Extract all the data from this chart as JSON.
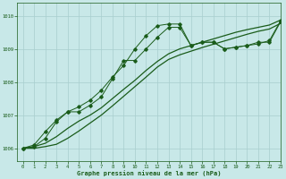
{
  "title": "Graphe pression niveau de la mer (hPa)",
  "background_color": "#c8e8e8",
  "grid_color": "#a8cece",
  "line_color": "#1a5c1a",
  "xlim": [
    -0.5,
    23
  ],
  "ylim": [
    1005.6,
    1010.4
  ],
  "yticks": [
    1006,
    1007,
    1008,
    1009,
    1010
  ],
  "xticks": [
    0,
    1,
    2,
    3,
    4,
    5,
    6,
    7,
    8,
    9,
    10,
    11,
    12,
    13,
    14,
    15,
    16,
    17,
    18,
    19,
    20,
    21,
    22,
    23
  ],
  "series1_x": [
    0,
    1,
    2,
    3,
    4,
    5,
    6,
    7,
    8,
    9,
    10,
    11,
    12,
    13,
    14,
    15,
    16,
    17,
    18,
    19,
    20,
    21,
    22,
    23
  ],
  "series1_y": [
    1006.0,
    1006.05,
    1006.3,
    1006.8,
    1007.1,
    1007.1,
    1007.3,
    1007.55,
    1008.1,
    1008.65,
    1008.65,
    1009.0,
    1009.35,
    1009.65,
    1009.65,
    1009.1,
    1009.2,
    1009.2,
    1009.0,
    1009.05,
    1009.1,
    1009.2,
    1009.2,
    1009.82
  ],
  "series2_x": [
    0,
    1,
    2,
    3,
    4,
    5,
    6,
    7,
    8,
    9,
    10,
    11,
    12,
    13,
    14,
    15,
    16,
    17,
    18,
    19,
    20,
    21,
    22,
    23
  ],
  "series2_y": [
    1006.0,
    1006.1,
    1006.5,
    1006.85,
    1007.1,
    1007.25,
    1007.45,
    1007.75,
    1008.15,
    1008.5,
    1009.0,
    1009.4,
    1009.7,
    1009.75,
    1009.75,
    1009.1,
    1009.2,
    1009.2,
    1009.0,
    1009.05,
    1009.1,
    1009.15,
    1009.25,
    1009.85
  ],
  "series3_x": [
    0,
    1,
    2,
    3,
    4,
    5,
    6,
    7,
    8,
    9,
    10,
    11,
    12,
    13,
    14,
    15,
    16,
    17,
    18,
    19,
    20,
    21,
    22,
    23
  ],
  "series3_y": [
    1006.0,
    1006.05,
    1006.15,
    1006.35,
    1006.6,
    1006.82,
    1007.0,
    1007.22,
    1007.5,
    1007.78,
    1008.05,
    1008.35,
    1008.62,
    1008.85,
    1009.0,
    1009.1,
    1009.2,
    1009.3,
    1009.4,
    1009.5,
    1009.58,
    1009.65,
    1009.72,
    1009.87
  ],
  "series4_x": [
    0,
    1,
    2,
    3,
    4,
    5,
    6,
    7,
    8,
    9,
    10,
    11,
    12,
    13,
    14,
    15,
    16,
    17,
    18,
    19,
    20,
    21,
    22,
    23
  ],
  "series4_y": [
    1006.0,
    1006.0,
    1006.05,
    1006.12,
    1006.3,
    1006.52,
    1006.76,
    1007.0,
    1007.28,
    1007.57,
    1007.86,
    1008.15,
    1008.45,
    1008.68,
    1008.82,
    1008.93,
    1009.04,
    1009.14,
    1009.24,
    1009.34,
    1009.44,
    1009.53,
    1009.6,
    1009.77
  ]
}
